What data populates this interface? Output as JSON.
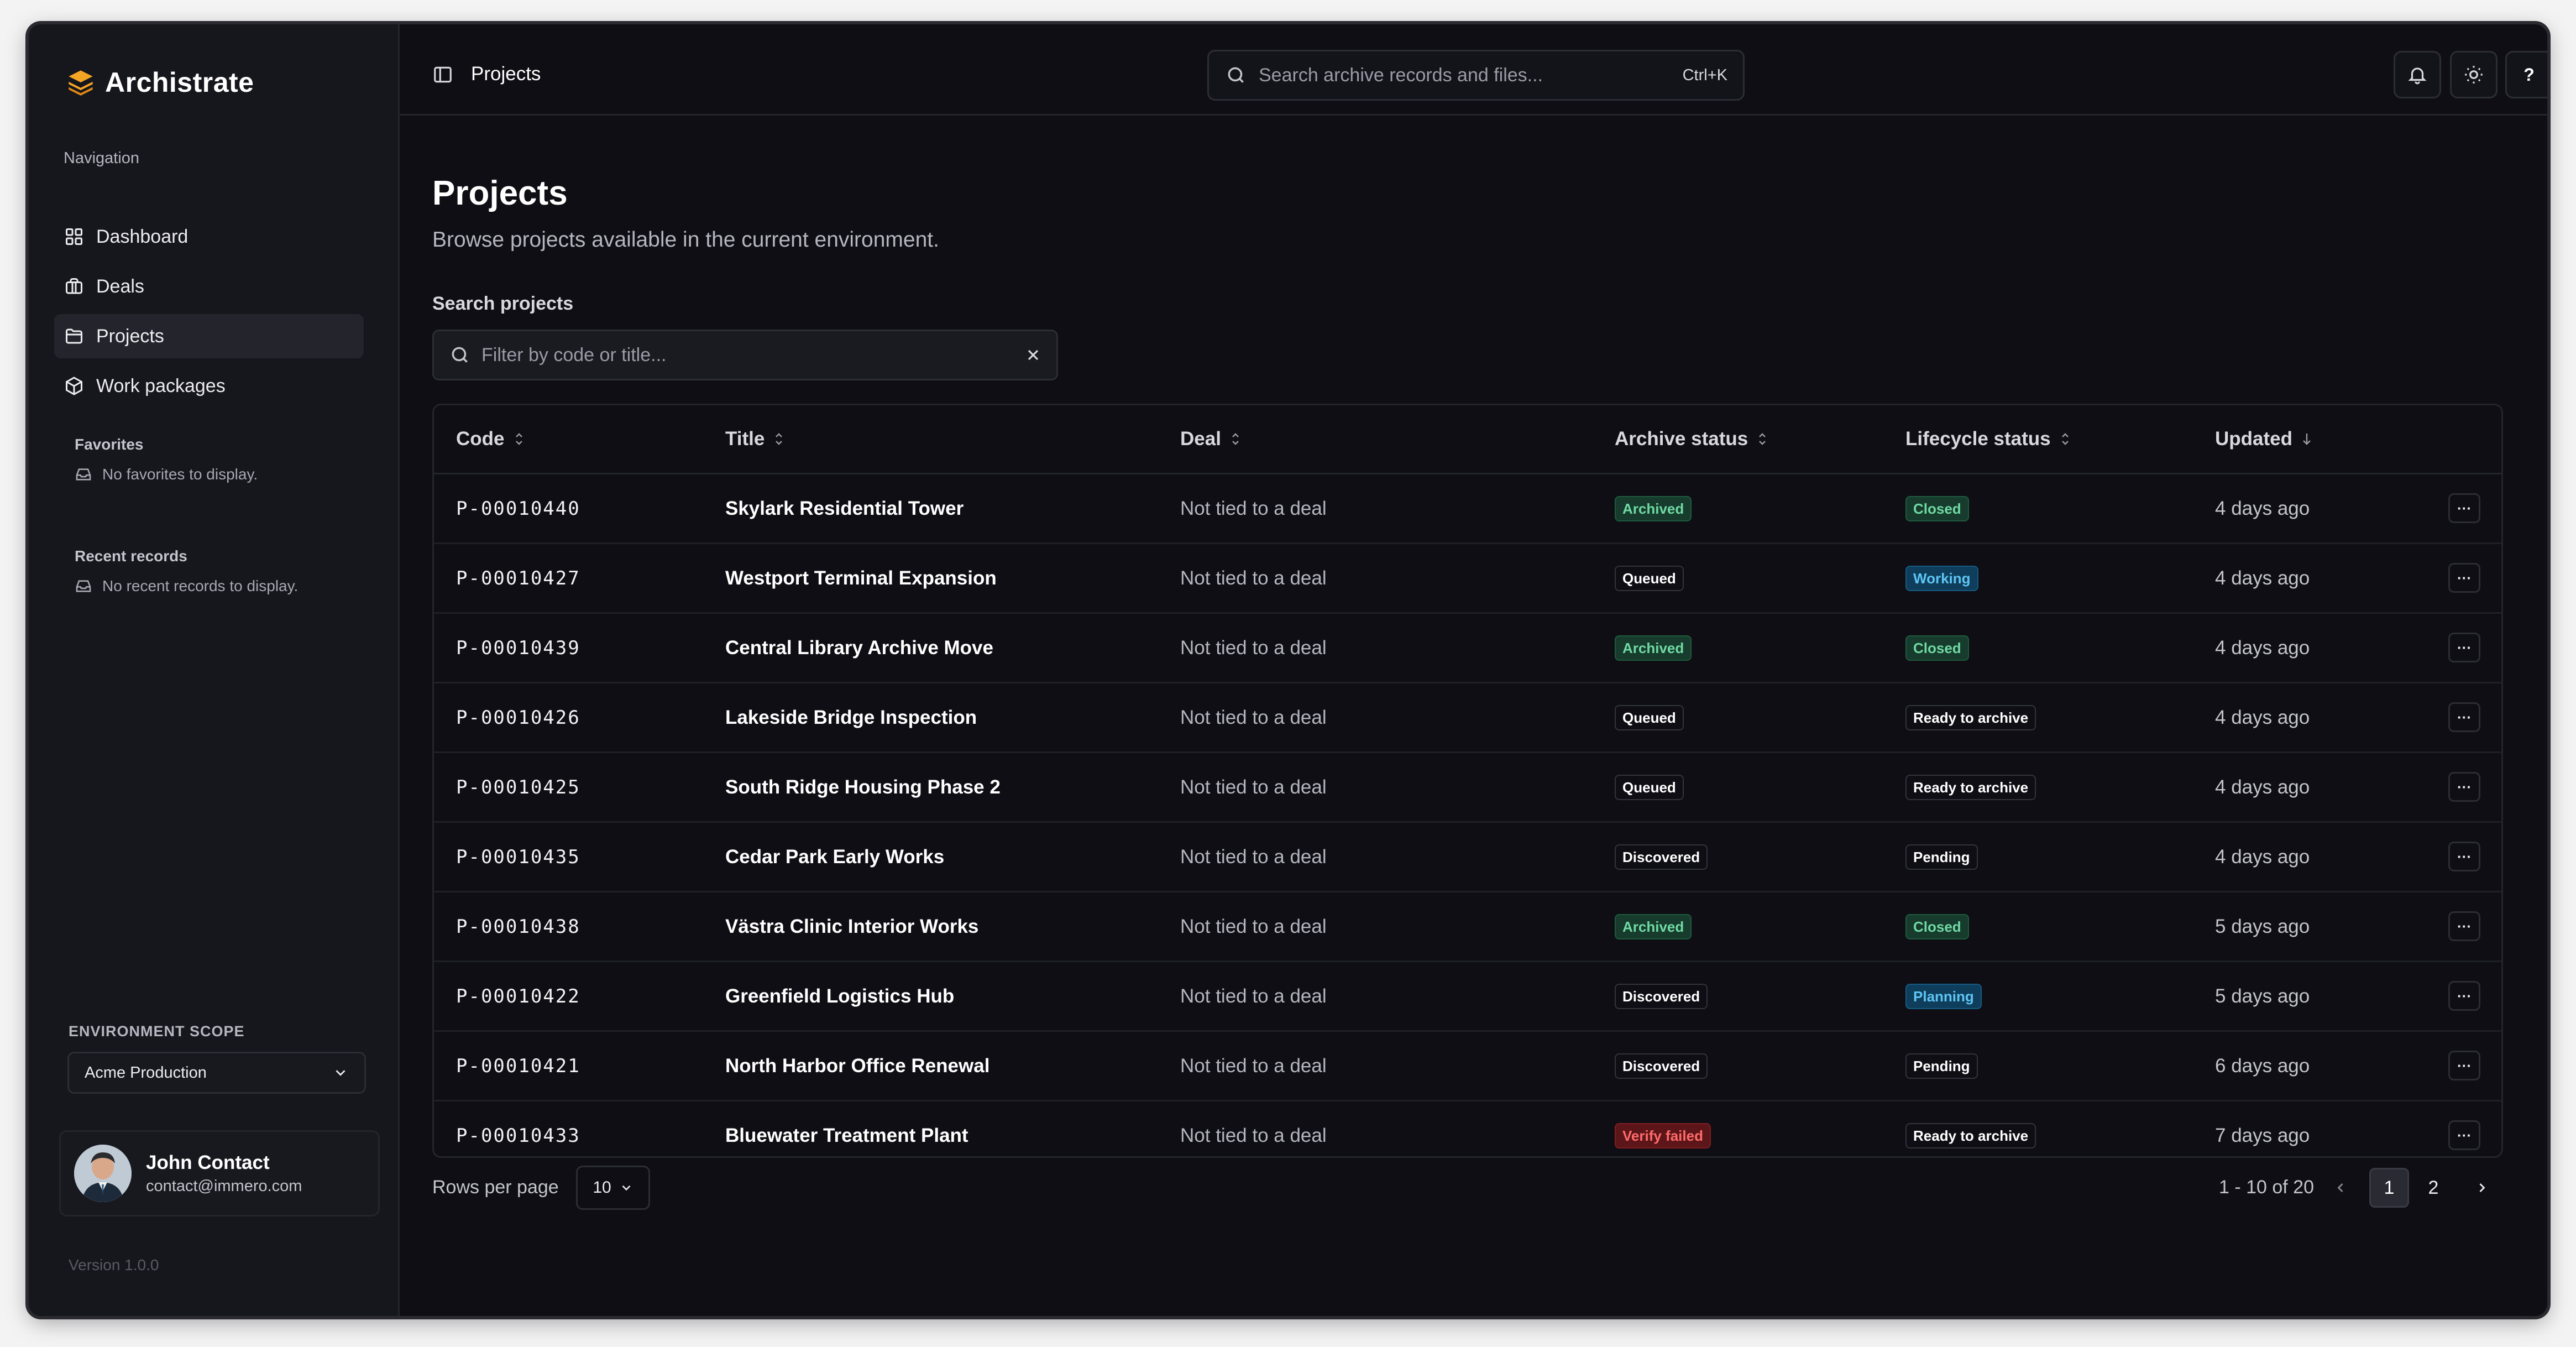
{
  "app": {
    "name": "Archistrate",
    "version": "Version 1.0.0"
  },
  "sidebar": {
    "nav_heading": "Navigation",
    "items": [
      {
        "label": "Dashboard",
        "icon": "dashboard-icon"
      },
      {
        "label": "Deals",
        "icon": "briefcase-icon"
      },
      {
        "label": "Projects",
        "icon": "folder-icon",
        "active": true
      },
      {
        "label": "Work packages",
        "icon": "package-icon"
      }
    ],
    "favorites": {
      "title": "Favorites",
      "empty": "No favorites to display."
    },
    "recent": {
      "title": "Recent records",
      "empty": "No recent records to display."
    },
    "environment": {
      "label": "ENVIRONMENT SCOPE",
      "value": "Acme Production"
    },
    "user": {
      "name": "John Contact",
      "email": "contact@immero.com"
    }
  },
  "topbar": {
    "title": "Projects",
    "search_placeholder": "Search archive records and files...",
    "shortcut": "Ctrl+K",
    "help_label": "?"
  },
  "main": {
    "title": "Projects",
    "subtitle": "Browse projects available in the current environment.",
    "filter_label": "Search projects",
    "filter_placeholder": "Filter by code or title..."
  },
  "table": {
    "columns": [
      "Code",
      "Title",
      "Deal",
      "Archive status",
      "Lifecycle status",
      "Updated"
    ],
    "rows": [
      {
        "code": "P-00010440",
        "title": "Skylark Residential Tower",
        "deal": "Not tied to a deal",
        "archive": "Archived",
        "archive_style": "green",
        "lifecycle": "Closed",
        "lifecycle_style": "green",
        "updated": "4 days ago"
      },
      {
        "code": "P-00010427",
        "title": "Westport Terminal Expansion",
        "deal": "Not tied to a deal",
        "archive": "Queued",
        "archive_style": "plain",
        "lifecycle": "Working",
        "lifecycle_style": "blue",
        "updated": "4 days ago"
      },
      {
        "code": "P-00010439",
        "title": "Central Library Archive Move",
        "deal": "Not tied to a deal",
        "archive": "Archived",
        "archive_style": "green",
        "lifecycle": "Closed",
        "lifecycle_style": "green",
        "updated": "4 days ago"
      },
      {
        "code": "P-00010426",
        "title": "Lakeside Bridge Inspection",
        "deal": "Not tied to a deal",
        "archive": "Queued",
        "archive_style": "plain",
        "lifecycle": "Ready to archive",
        "lifecycle_style": "plain",
        "updated": "4 days ago"
      },
      {
        "code": "P-00010425",
        "title": "South Ridge Housing Phase 2",
        "deal": "Not tied to a deal",
        "archive": "Queued",
        "archive_style": "plain",
        "lifecycle": "Ready to archive",
        "lifecycle_style": "plain",
        "updated": "4 days ago"
      },
      {
        "code": "P-00010435",
        "title": "Cedar Park Early Works",
        "deal": "Not tied to a deal",
        "archive": "Discovered",
        "archive_style": "plain",
        "lifecycle": "Pending",
        "lifecycle_style": "plain",
        "updated": "4 days ago"
      },
      {
        "code": "P-00010438",
        "title": "Västra Clinic Interior Works",
        "deal": "Not tied to a deal",
        "archive": "Archived",
        "archive_style": "green",
        "lifecycle": "Closed",
        "lifecycle_style": "green",
        "updated": "5 days ago"
      },
      {
        "code": "P-00010422",
        "title": "Greenfield Logistics Hub",
        "deal": "Not tied to a deal",
        "archive": "Discovered",
        "archive_style": "plain",
        "lifecycle": "Planning",
        "lifecycle_style": "blue",
        "updated": "5 days ago"
      },
      {
        "code": "P-00010421",
        "title": "North Harbor Office Renewal",
        "deal": "Not tied to a deal",
        "archive": "Discovered",
        "archive_style": "plain",
        "lifecycle": "Pending",
        "lifecycle_style": "plain",
        "updated": "6 days ago"
      },
      {
        "code": "P-00010433",
        "title": "Bluewater Treatment Plant",
        "deal": "Not tied to a deal",
        "archive": "Verify failed",
        "archive_style": "red",
        "lifecycle": "Ready to archive",
        "lifecycle_style": "plain",
        "updated": "7 days ago"
      }
    ],
    "row_menu_label": "···"
  },
  "pagination": {
    "rows_per_page_label": "Rows per page",
    "rows_per_page": "10",
    "range": "1 - 10 of 20",
    "pages": [
      "1",
      "2"
    ],
    "current_page": "1"
  },
  "colors": {
    "accent_brand": "#f5a524",
    "green_badge": "#6fd9a4",
    "blue_badge": "#5ec5f4",
    "red_badge": "#ff6b6b"
  }
}
